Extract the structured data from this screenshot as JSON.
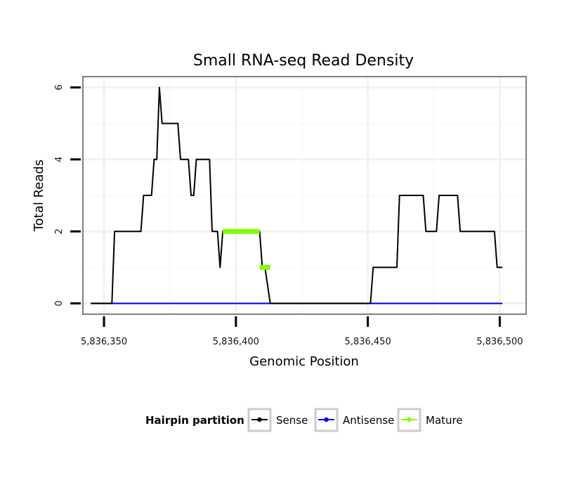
{
  "chart_data": {
    "type": "line",
    "title": "Small RNA-seq Read Density",
    "xlabel": "Genomic Position",
    "ylabel": "Total Reads",
    "xlim": [
      5836342,
      5836510
    ],
    "ylim": [
      -0.3,
      6.3
    ],
    "x_ticks": [
      5836350,
      5836400,
      5836450,
      5836500
    ],
    "x_tick_labels": [
      "5,836,350",
      "5,836,400",
      "5,836,450",
      "5,836,500"
    ],
    "y_ticks": [
      0,
      2,
      4,
      6
    ],
    "y_tick_labels": [
      "0",
      "2",
      "4",
      "6"
    ],
    "x_minor_gridlines": [
      5836375,
      5836425,
      5836475
    ],
    "y_minor_gridlines": [
      1,
      3,
      5
    ],
    "legend": {
      "title": "Hairpin partition",
      "position": "bottom",
      "entries": [
        {
          "label": "Sense",
          "color": "#000000"
        },
        {
          "label": "Antisense",
          "color": "#0000ff"
        },
        {
          "label": "Mature",
          "color": "#80ff00"
        }
      ]
    },
    "series": [
      {
        "name": "Sense",
        "color": "#000000",
        "points": [
          [
            5836345,
            0
          ],
          [
            5836353,
            0
          ],
          [
            5836354,
            2
          ],
          [
            5836364,
            2
          ],
          [
            5836365,
            3
          ],
          [
            5836368,
            3
          ],
          [
            5836369,
            4
          ],
          [
            5836370,
            4
          ],
          [
            5836371,
            6
          ],
          [
            5836372,
            5
          ],
          [
            5836378,
            5
          ],
          [
            5836379,
            4
          ],
          [
            5836382,
            4
          ],
          [
            5836383,
            3
          ],
          [
            5836384,
            3
          ],
          [
            5836385,
            4
          ],
          [
            5836390,
            4
          ],
          [
            5836391,
            2
          ],
          [
            5836393,
            2
          ],
          [
            5836394,
            1
          ],
          [
            5836395,
            2
          ],
          [
            5836409,
            2
          ],
          [
            5836410,
            1
          ],
          [
            5836411,
            1
          ],
          [
            5836413,
            0
          ],
          [
            5836451,
            0
          ],
          [
            5836452,
            1
          ],
          [
            5836461,
            1
          ],
          [
            5836462,
            3
          ],
          [
            5836471,
            3
          ],
          [
            5836472,
            2
          ],
          [
            5836476,
            2
          ],
          [
            5836477,
            3
          ],
          [
            5836484,
            3
          ],
          [
            5836485,
            2
          ],
          [
            5836498,
            2
          ],
          [
            5836499,
            1
          ],
          [
            5836501,
            1
          ]
        ]
      },
      {
        "name": "Antisense",
        "color": "#0000ff",
        "points": [
          [
            5836345,
            0
          ],
          [
            5836501,
            0
          ]
        ]
      },
      {
        "name": "Mature",
        "color": "#80ff00",
        "segments": [
          [
            [
              5836395,
              2
            ],
            [
              5836409,
              2
            ]
          ],
          [
            [
              5836409,
              1
            ],
            [
              5836413,
              1
            ]
          ]
        ]
      }
    ]
  }
}
